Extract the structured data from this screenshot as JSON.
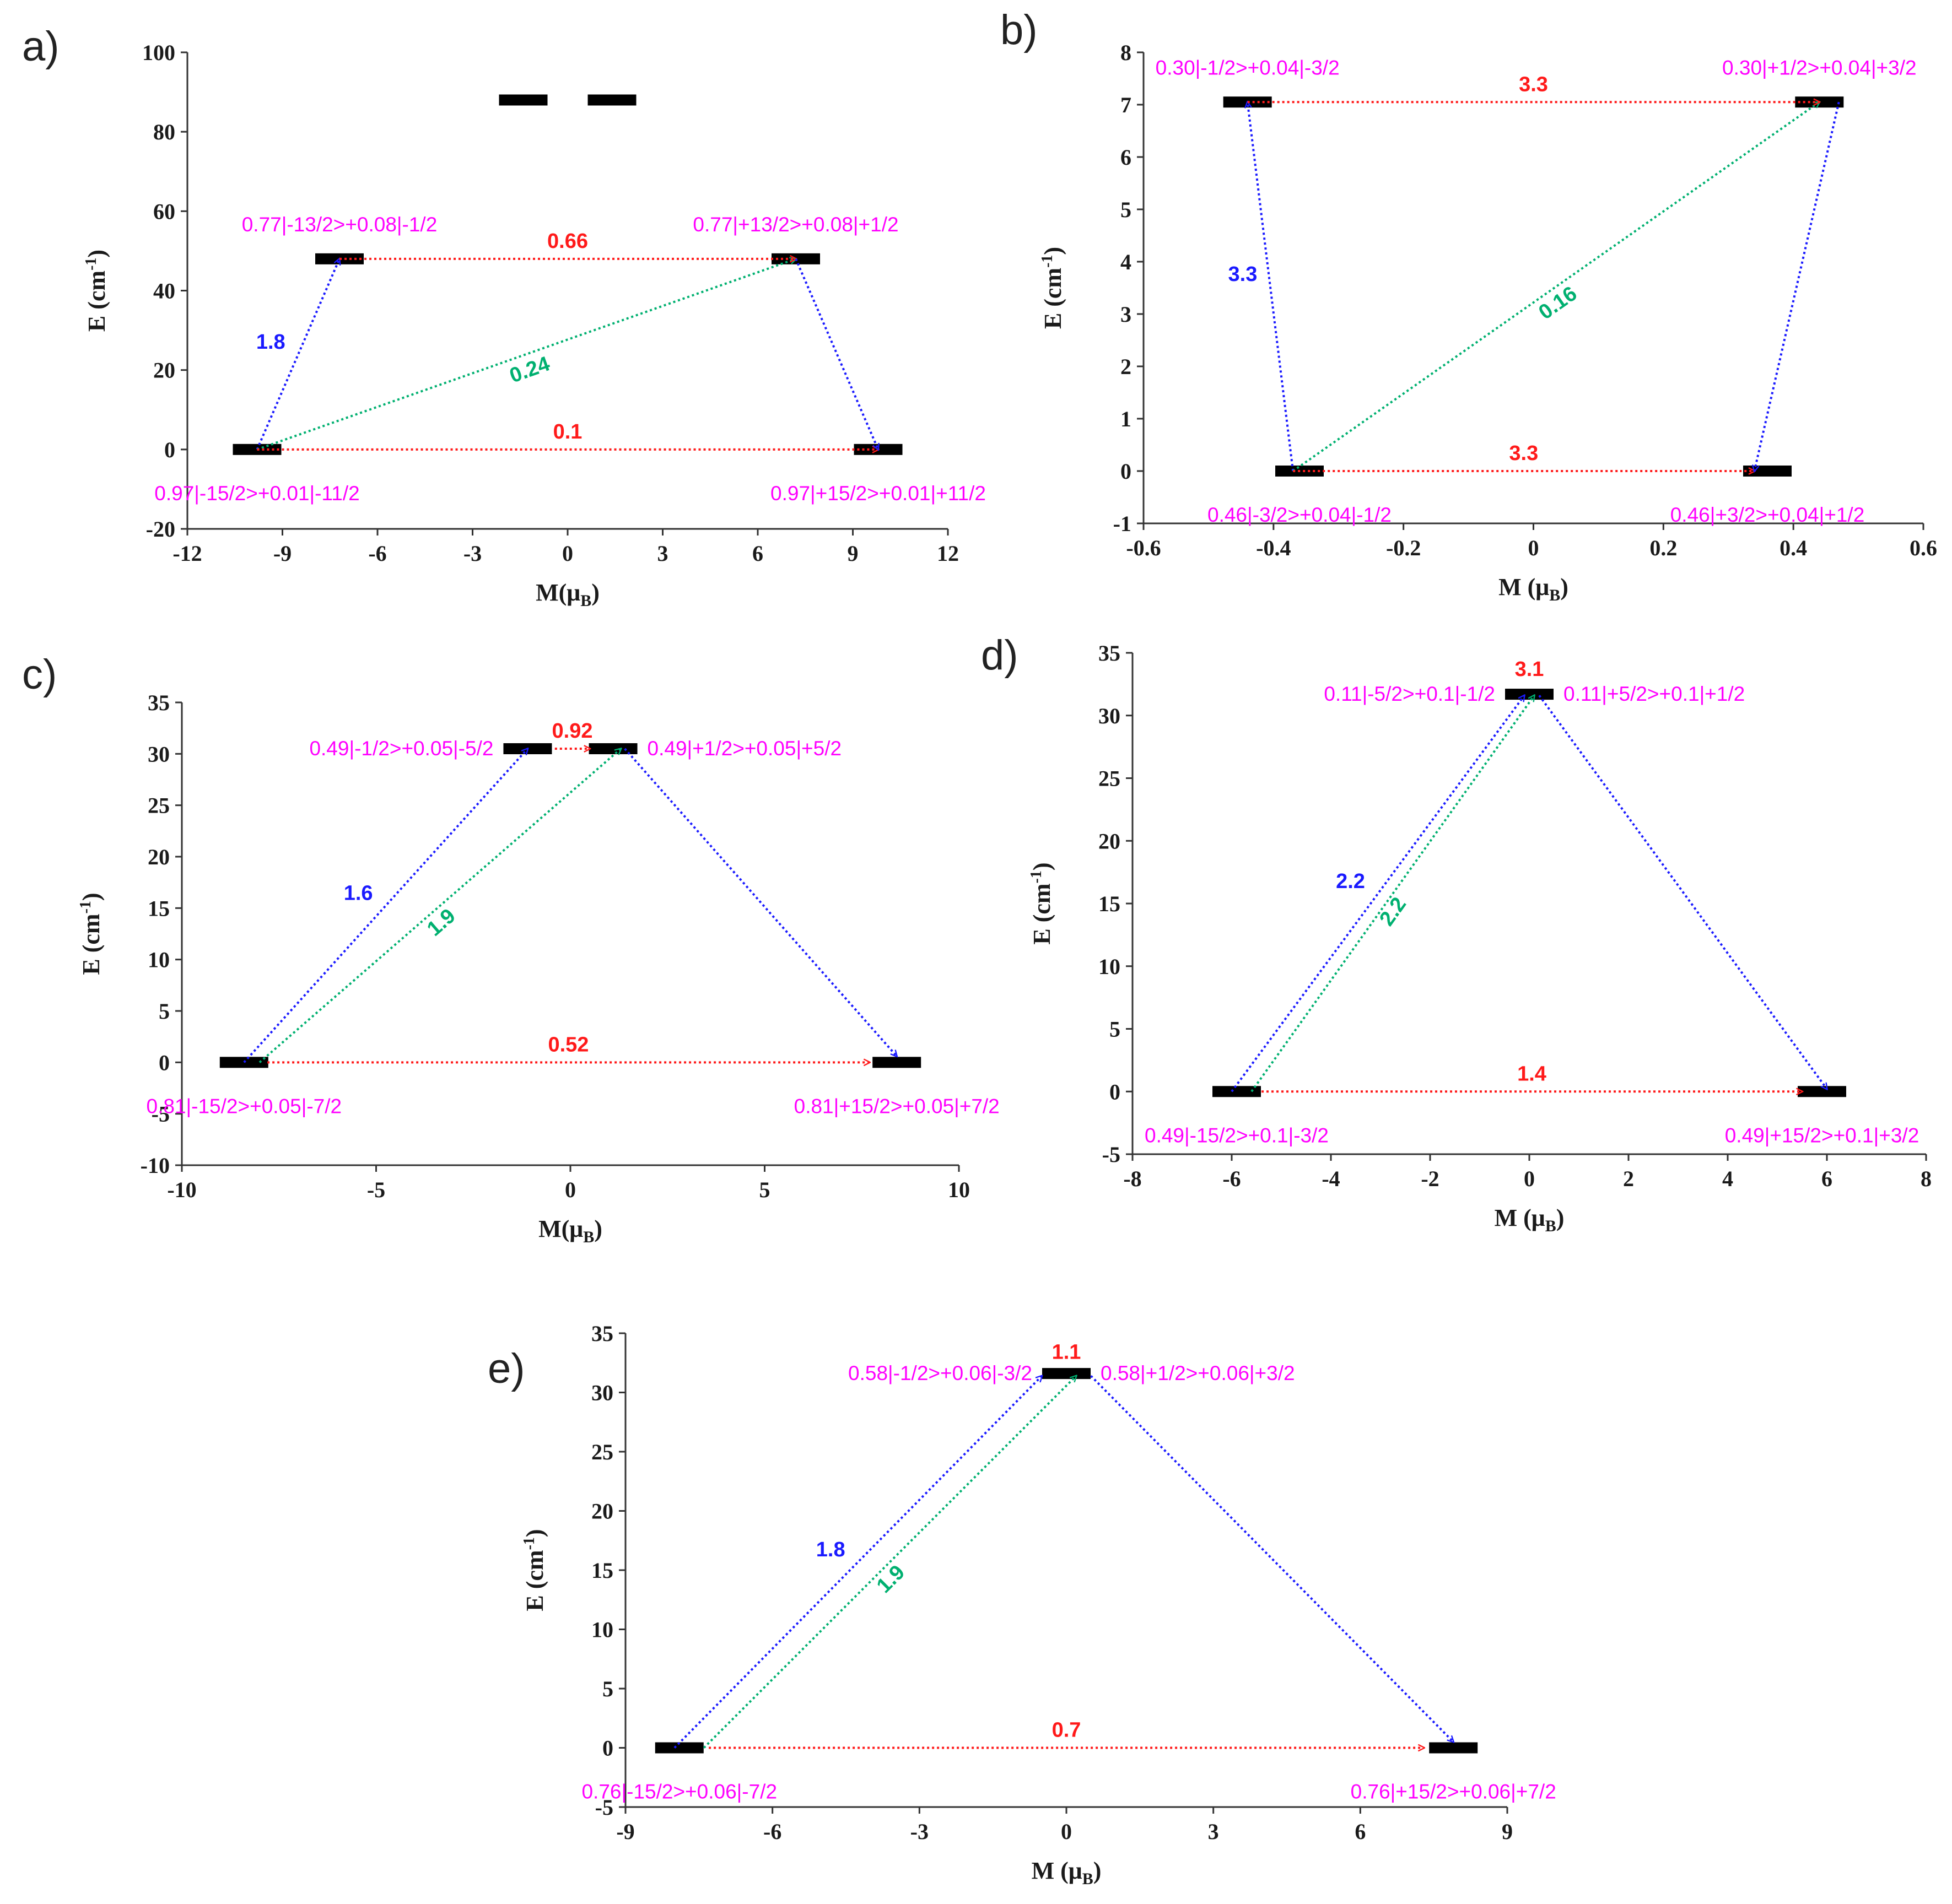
{
  "chart_data": [
    {
      "type": "energy-level-diagram",
      "panel": "a)",
      "xlabel": "M(μB)",
      "ylabel": "E (cm-1)",
      "xlim": [
        -12,
        12
      ],
      "xticks": [
        -12,
        -9,
        -6,
        -3,
        0,
        3,
        6,
        9,
        12
      ],
      "ylim": [
        -20,
        100
      ],
      "yticks": [
        -20,
        0,
        20,
        40,
        60,
        80,
        100
      ],
      "levels": [
        {
          "x": -9.8,
          "y": 0,
          "label": "0.97|-15/2>+0.01|-11/2",
          "label_pos": "below"
        },
        {
          "x": 9.8,
          "y": 0,
          "label": "0.97|+15/2>+0.01|+11/2",
          "label_pos": "below"
        },
        {
          "x": -7.2,
          "y": 48,
          "label": "0.77|-13/2>+0.08|-1/2",
          "label_pos": "above"
        },
        {
          "x": 7.2,
          "y": 48,
          "label": "0.77|+13/2>+0.08|+1/2",
          "label_pos": "above"
        },
        {
          "x": -1.4,
          "y": 88,
          "label": ""
        },
        {
          "x": 1.4,
          "y": 88,
          "label": ""
        }
      ],
      "arrows": [
        {
          "from": [
            -9.8,
            0
          ],
          "to": [
            -7.2,
            48
          ],
          "color": "#1a1aff",
          "value": "1.8"
        },
        {
          "from": [
            -9.8,
            0
          ],
          "to": [
            7.2,
            48
          ],
          "color": "#00b070",
          "value": "0.24"
        },
        {
          "from": [
            -7.2,
            48
          ],
          "to": [
            7.2,
            48
          ],
          "color": "#ff1a1a",
          "value": "0.66"
        },
        {
          "from": [
            -9.8,
            0
          ],
          "to": [
            9.8,
            0
          ],
          "color": "#ff1a1a",
          "value": "0.1"
        },
        {
          "from": [
            7.2,
            48
          ],
          "to": [
            9.8,
            0
          ],
          "color": "#1a1aff",
          "value": ""
        }
      ]
    },
    {
      "type": "energy-level-diagram",
      "panel": "b)",
      "xlabel": "M (μB)",
      "ylabel": "E (cm-1)",
      "xlim": [
        -0.6,
        0.6
      ],
      "xticks": [
        -0.6,
        -0.4,
        -0.2,
        0,
        0.2,
        0.4,
        0.6
      ],
      "ylim": [
        -1,
        8
      ],
      "yticks": [
        -1,
        0,
        1,
        2,
        3,
        4,
        5,
        6,
        7,
        8
      ],
      "levels": [
        {
          "x": -0.36,
          "y": 0,
          "label": "0.46|-3/2>+0.04|-1/2",
          "label_pos": "below"
        },
        {
          "x": 0.36,
          "y": 0,
          "label": "0.46|+3/2>+0.04|+1/2",
          "label_pos": "below"
        },
        {
          "x": -0.44,
          "y": 7.05,
          "label": "0.30|-1/2>+0.04|-3/2",
          "label_pos": "above"
        },
        {
          "x": 0.44,
          "y": 7.05,
          "label": "0.30|+1/2>+0.04|+3/2",
          "label_pos": "above"
        }
      ],
      "arrows": [
        {
          "from": [
            -0.37,
            0
          ],
          "to": [
            -0.44,
            7.05
          ],
          "color": "#1a1aff",
          "value": "3.3"
        },
        {
          "from": [
            -0.37,
            0
          ],
          "to": [
            0.44,
            7.05
          ],
          "color": "#00b070",
          "value": "0.16"
        },
        {
          "from": [
            -0.44,
            7.05
          ],
          "to": [
            0.44,
            7.05
          ],
          "color": "#ff1a1a",
          "value": "3.3"
        },
        {
          "from": [
            -0.37,
            0
          ],
          "to": [
            0.34,
            0
          ],
          "color": "#ff1a1a",
          "value": "3.3"
        },
        {
          "from": [
            0.47,
            7.05
          ],
          "to": [
            0.34,
            0
          ],
          "color": "#1a1aff",
          "value": ""
        }
      ]
    },
    {
      "type": "energy-level-diagram",
      "panel": "c)",
      "xlabel": "M(μB)",
      "ylabel": "E (cm-1)",
      "xlim": [
        -10,
        10
      ],
      "xticks": [
        -10,
        -5,
        0,
        5,
        10
      ],
      "ylim": [
        -10,
        35
      ],
      "yticks": [
        -10,
        -5,
        0,
        5,
        10,
        15,
        20,
        25,
        30,
        35
      ],
      "levels": [
        {
          "x": -8.4,
          "y": 0,
          "label": "0.81|-15/2>+0.05|-7/2",
          "label_pos": "below"
        },
        {
          "x": 8.4,
          "y": 0,
          "label": "0.81|+15/2>+0.05|+7/2",
          "label_pos": "below"
        },
        {
          "x": -1.1,
          "y": 30.5,
          "label": "0.49|-1/2>+0.05|-5/2",
          "label_pos": "left"
        },
        {
          "x": 1.1,
          "y": 30.5,
          "label": "0.49|+1/2>+0.05|+5/2",
          "label_pos": "right"
        }
      ],
      "arrows": [
        {
          "from": [
            -8.4,
            0
          ],
          "to": [
            -1.1,
            30.5
          ],
          "color": "#1a1aff",
          "value": "1.6"
        },
        {
          "from": [
            -8.0,
            0
          ],
          "to": [
            1.3,
            30.5
          ],
          "color": "#00b070",
          "value": "1.9"
        },
        {
          "from": [
            -0.4,
            30.5
          ],
          "to": [
            0.5,
            30.5
          ],
          "color": "#ff1a1a",
          "value": "0.92"
        },
        {
          "from": [
            -7.8,
            0
          ],
          "to": [
            7.7,
            0
          ],
          "color": "#ff1a1a",
          "value": "0.52"
        },
        {
          "from": [
            1.4,
            30.5
          ],
          "to": [
            8.4,
            0.6
          ],
          "color": "#1a1aff",
          "value": ""
        }
      ]
    },
    {
      "type": "energy-level-diagram",
      "panel": "d)",
      "xlabel": "M (μB)",
      "ylabel": "E (cm-1)",
      "xlim": [
        -8,
        8
      ],
      "xticks": [
        -8,
        -6,
        -4,
        -2,
        0,
        2,
        4,
        6,
        8
      ],
      "ylim": [
        -5,
        35
      ],
      "yticks": [
        -5,
        0,
        5,
        10,
        15,
        20,
        25,
        30,
        35
      ],
      "levels": [
        {
          "x": -5.9,
          "y": 0,
          "label": "0.49|-15/2>+0.1|-3/2",
          "label_pos": "below"
        },
        {
          "x": 5.9,
          "y": 0,
          "label": "0.49|+15/2>+0.1|+3/2",
          "label_pos": "below"
        },
        {
          "x": 0,
          "y": 31.7,
          "label": "0.11|-5/2>+0.1|-1/2",
          "label_pos": "left"
        },
        {
          "x": 0,
          "y": 31.7,
          "label": "0.11|+5/2>+0.1|+1/2",
          "label_pos": "right"
        }
      ],
      "arrows": [
        {
          "from": [
            -6.0,
            0
          ],
          "to": [
            -0.1,
            31.6
          ],
          "color": "#1a1aff",
          "value": "2.2"
        },
        {
          "from": [
            -5.6,
            0
          ],
          "to": [
            0.1,
            31.6
          ],
          "color": "#00b070",
          "value": "2.2"
        },
        {
          "from": [
            -5.4,
            0
          ],
          "to": [
            5.5,
            0
          ],
          "color": "#ff1a1a",
          "value": "1.4"
        },
        {
          "from": [
            0.2,
            31.6
          ],
          "to": [
            6.0,
            0.2
          ],
          "color": "#1a1aff",
          "value": ""
        }
      ],
      "annotations": [
        {
          "text": "3.1",
          "x": 0,
          "y": 33.5,
          "color": "#ff1a1a"
        }
      ]
    },
    {
      "type": "energy-level-diagram",
      "panel": "e)",
      "xlabel": "M (μB)",
      "ylabel": "E (cm-1)",
      "xlim": [
        -9,
        9
      ],
      "xticks": [
        -9,
        -6,
        -3,
        0,
        3,
        6,
        9
      ],
      "ylim": [
        -5,
        35
      ],
      "yticks": [
        -5,
        0,
        5,
        10,
        15,
        20,
        25,
        30,
        35
      ],
      "levels": [
        {
          "x": -7.9,
          "y": 0,
          "label": "0.76|-15/2>+0.06|-7/2",
          "label_pos": "below"
        },
        {
          "x": 7.9,
          "y": 0,
          "label": "0.76|+15/2>+0.06|+7/2",
          "label_pos": "below"
        },
        {
          "x": 0,
          "y": 31.6,
          "label": "0.58|-1/2>+0.06|-3/2",
          "label_pos": "left"
        },
        {
          "x": 0,
          "y": 31.6,
          "label": "0.58|+1/2>+0.06|+3/2",
          "label_pos": "right"
        }
      ],
      "arrows": [
        {
          "from": [
            -8.0,
            0
          ],
          "to": [
            -0.5,
            31.4
          ],
          "color": "#1a1aff",
          "value": "1.8"
        },
        {
          "from": [
            -7.4,
            0
          ],
          "to": [
            0.2,
            31.4
          ],
          "color": "#00b070",
          "value": "1.9"
        },
        {
          "from": [
            -7.3,
            0
          ],
          "to": [
            7.3,
            0
          ],
          "color": "#ff1a1a",
          "value": "0.7"
        },
        {
          "from": [
            0.5,
            31.4
          ],
          "to": [
            7.9,
            0.5
          ],
          "color": "#1a1aff",
          "value": ""
        }
      ],
      "annotations": [
        {
          "text": "1.1",
          "x": 0,
          "y": 33.2,
          "color": "#ff1a1a"
        }
      ]
    }
  ]
}
